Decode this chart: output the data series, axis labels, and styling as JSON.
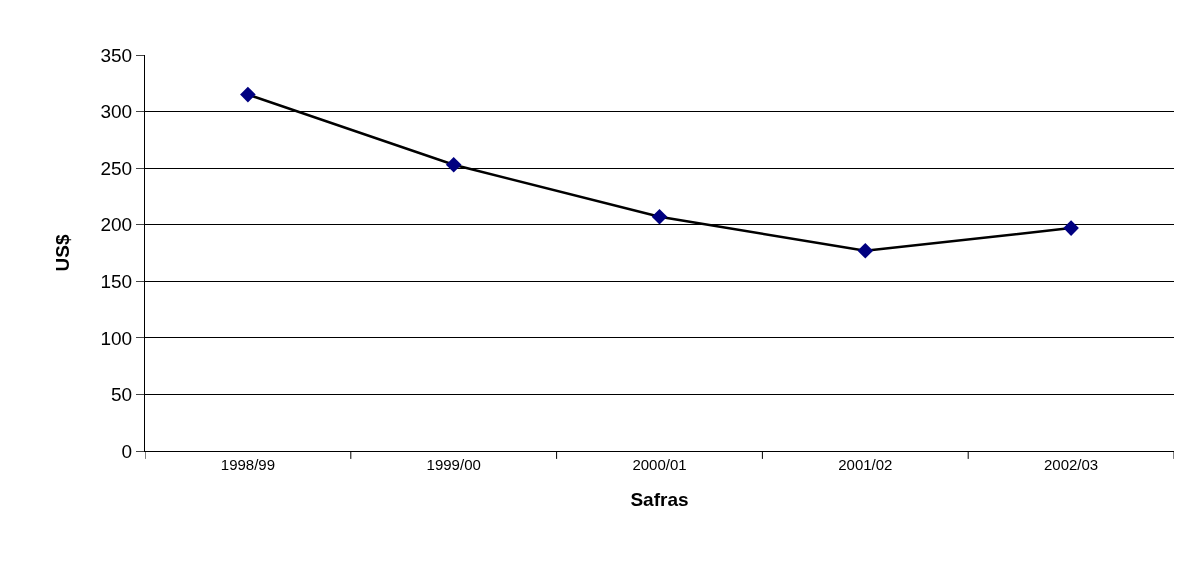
{
  "chart_data": {
    "type": "line",
    "xlabel": "Safras",
    "ylabel": "US$",
    "categories": [
      "1998/99",
      "1999/00",
      "2000/01",
      "2001/02",
      "2002/03"
    ],
    "series": [
      {
        "color": "#000080",
        "values": [
          315,
          253,
          207,
          177,
          197
        ]
      }
    ],
    "ylim": [
      0,
      350
    ],
    "yticks": [
      0,
      50,
      100,
      150,
      200,
      250,
      300,
      350
    ],
    "grid": "y",
    "marker": "diamond",
    "line_style": "solid"
  }
}
